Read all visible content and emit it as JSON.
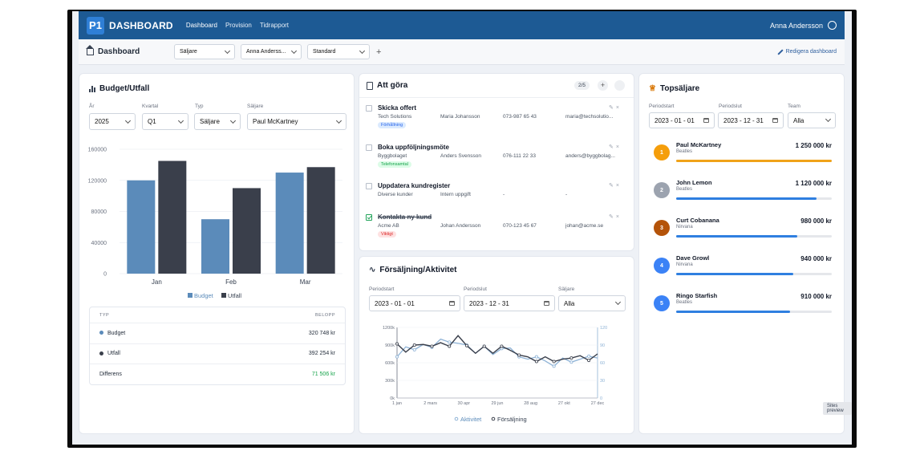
{
  "nav": {
    "logo_mark": "P1",
    "logo_text": "DASHBOARD",
    "links": [
      "Dashboard",
      "Provision",
      "Tidrapport"
    ],
    "user": "Anna Andersson"
  },
  "subbar": {
    "title": "Dashboard",
    "filters": [
      "Säljare",
      "Anna Anderss...",
      "Standard"
    ],
    "add": "+",
    "edit": "Redigera dashboard"
  },
  "budget": {
    "title": "Budget/Utfall",
    "filters": [
      {
        "label": "År",
        "value": "2025"
      },
      {
        "label": "Kvartal",
        "value": "Q1"
      },
      {
        "label": "Typ",
        "value": "Säljare"
      },
      {
        "label": "Säljare",
        "value": "Paul McKartney"
      }
    ],
    "table": {
      "headers": [
        "TYP",
        "BELOPP"
      ],
      "rows": [
        {
          "label": "Budget",
          "value": "320 748 kr"
        },
        {
          "label": "Utfall",
          "value": "392 254 kr"
        },
        {
          "label": "Differens",
          "value": "71 506 kr"
        }
      ]
    }
  },
  "chart_data": [
    {
      "type": "bar",
      "categories": [
        "Jan",
        "Feb",
        "Mar"
      ],
      "series": [
        {
          "name": "Budget",
          "values": [
            120000,
            70000,
            130000
          ]
        },
        {
          "name": "Utfall",
          "values": [
            145000,
            110000,
            137000
          ]
        }
      ],
      "y_ticks": [
        "0",
        "40000",
        "80000",
        "120000",
        "160000"
      ],
      "ylim": [
        0,
        160000
      ],
      "colors": {
        "Budget": "#5b8bba",
        "Utfall": "#3a3f4b"
      },
      "legend_position": "bottom"
    },
    {
      "type": "line",
      "x": [
        "1 jan",
        "15 jan",
        "1 feb",
        "15 feb",
        "1 mar",
        "15 mar",
        "1 apr",
        "15 apr",
        "1 maj",
        "15 maj",
        "1 jun",
        "15 jun",
        "1 jul",
        "15 jul",
        "1 aug",
        "15 aug",
        "1 sep",
        "15 sep",
        "1 okt",
        "15 okt",
        "1 nov",
        "15 nov",
        "1 dec",
        "27 dec"
      ],
      "x_tick_labels": [
        "1 jan",
        "2 mars",
        "30 apr",
        "29 jun",
        "28 aug",
        "27 okt",
        "27 dec"
      ],
      "left_ticks": [
        "0k",
        "300k",
        "600k",
        "900k",
        "1200k"
      ],
      "right_ticks": [
        "0",
        "30",
        "60",
        "90",
        "120"
      ],
      "ylim_left": [
        0,
        1200000
      ],
      "ylim_right": [
        0,
        120
      ],
      "series": [
        {
          "name": "Aktivitet",
          "axis": "right",
          "values": [
            70,
            87,
            82,
            91,
            86,
            100,
            95,
            93,
            90,
            76,
            88,
            74,
            84,
            85,
            70,
            66,
            70,
            63,
            54,
            68,
            61,
            66,
            71,
            68
          ]
        },
        {
          "name": "Försäljning",
          "axis": "left",
          "values": [
            920000,
            780000,
            900000,
            910000,
            880000,
            940000,
            880000,
            1060000,
            890000,
            760000,
            880000,
            760000,
            880000,
            810000,
            730000,
            700000,
            620000,
            700000,
            620000,
            660000,
            680000,
            720000,
            640000,
            750000
          ]
        }
      ],
      "colors": {
        "Aktivitet": "#8fb3d6",
        "Försäljning": "#3a3f4b"
      },
      "legend_position": "bottom"
    }
  ],
  "todo": {
    "title": "Att göra",
    "count": "2/5",
    "items": [
      {
        "title": "Skicka offert",
        "company": "Tech Solutions",
        "contact": "Maria Johansson",
        "phone": "073-987 65 43",
        "email": "maria@techsolutio...",
        "tag": "Förhållning",
        "tag_bg": "#dbeafe",
        "tag_fg": "#2563eb",
        "done": false
      },
      {
        "title": "Boka uppföljningsmöte",
        "company": "Byggbolaget",
        "contact": "Anders Svensson",
        "phone": "076-111 22 33",
        "email": "anders@byggbolag...",
        "tag": "Telefonsamtal",
        "tag_bg": "#dcfce7",
        "tag_fg": "#16a34a",
        "done": false
      },
      {
        "title": "Uppdatera kundregister",
        "company": "Diverse kunder",
        "contact": "Intern uppgift",
        "phone": "-",
        "email": "-",
        "tag": "",
        "done": false
      },
      {
        "title": "Kontakta ny kund",
        "company": "Acme AB",
        "contact": "Johan Andersson",
        "phone": "070-123 45 67",
        "email": "johan@acme.se",
        "tag": "Viktigt",
        "tag_bg": "#fee2e2",
        "tag_fg": "#dc2626",
        "done": true
      }
    ]
  },
  "activity": {
    "title": "Försäljning/Aktivitet",
    "start_label": "Periodstart",
    "start": "2023 - 01 - 01",
    "end_label": "Periodslut",
    "end": "2023 - 12 - 31",
    "seller_label": "Säljare",
    "seller": "Alla",
    "legend": [
      "Aktivitet",
      "Försäljning"
    ]
  },
  "top": {
    "title": "Topsäljare",
    "start_label": "Periodstart",
    "start": "2023 - 01 - 01",
    "end_label": "Periodslut",
    "end": "2023 - 12 - 31",
    "team_label": "Team",
    "team": "Alla",
    "sellers": [
      {
        "rank": "1",
        "name": "Paul McKartney",
        "band": "Beatles",
        "amount": "1 250 000 kr",
        "progress": 1.0,
        "color": "#f59e0b",
        "bar": "#f0a31a"
      },
      {
        "rank": "2",
        "name": "John Lemon",
        "band": "Beatles",
        "amount": "1 120 000 kr",
        "progress": 0.9,
        "color": "#9ca3af",
        "bar": "#2f7fe0"
      },
      {
        "rank": "3",
        "name": "Curt Cobanana",
        "band": "Nirvana",
        "amount": "980 000 kr",
        "progress": 0.78,
        "color": "#b45309",
        "bar": "#2f7fe0"
      },
      {
        "rank": "4",
        "name": "Dave Growl",
        "band": "Nirvana",
        "amount": "940 000 kr",
        "progress": 0.75,
        "color": "#3b82f6",
        "bar": "#2f7fe0"
      },
      {
        "rank": "5",
        "name": "Ringo Starfish",
        "band": "Beatles",
        "amount": "910 000 kr",
        "progress": 0.73,
        "color": "#3b82f6",
        "bar": "#2f7fe0"
      }
    ]
  },
  "tooltip": "Sites preview"
}
